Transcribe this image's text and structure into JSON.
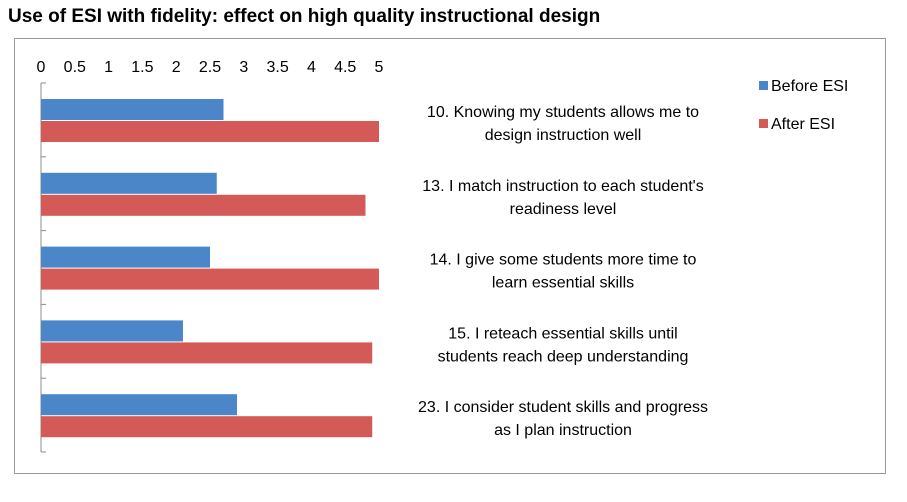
{
  "title": "Use of ESI with fidelity: effect on high quality instructional design",
  "colors": {
    "before": "#4a86c8",
    "after": "#d45a58"
  },
  "chart_data": {
    "type": "bar",
    "orientation": "horizontal",
    "xlim": [
      0,
      5
    ],
    "xticks": [
      "0",
      "0.5",
      "1",
      "1.5",
      "2",
      "2.5",
      "3",
      "3.5",
      "4",
      "4.5",
      "5"
    ],
    "categories": [
      [
        "10. Knowing my students allows me to",
        "design instruction well"
      ],
      [
        "13. I match instruction to each student's",
        "readiness level"
      ],
      [
        "14. I give some students more time to",
        "learn essential skills"
      ],
      [
        "15.    I reteach essential skills until",
        "students reach deep understanding"
      ],
      [
        "23. I consider student skills and progress",
        "as I plan instruction"
      ]
    ],
    "series": [
      {
        "name": "Before ESI",
        "values": [
          2.7,
          2.6,
          2.5,
          2.1,
          2.9
        ]
      },
      {
        "name": "After ESI",
        "values": [
          5.0,
          4.8,
          5.0,
          4.9,
          4.9
        ]
      }
    ],
    "legend_position": "top-right"
  }
}
